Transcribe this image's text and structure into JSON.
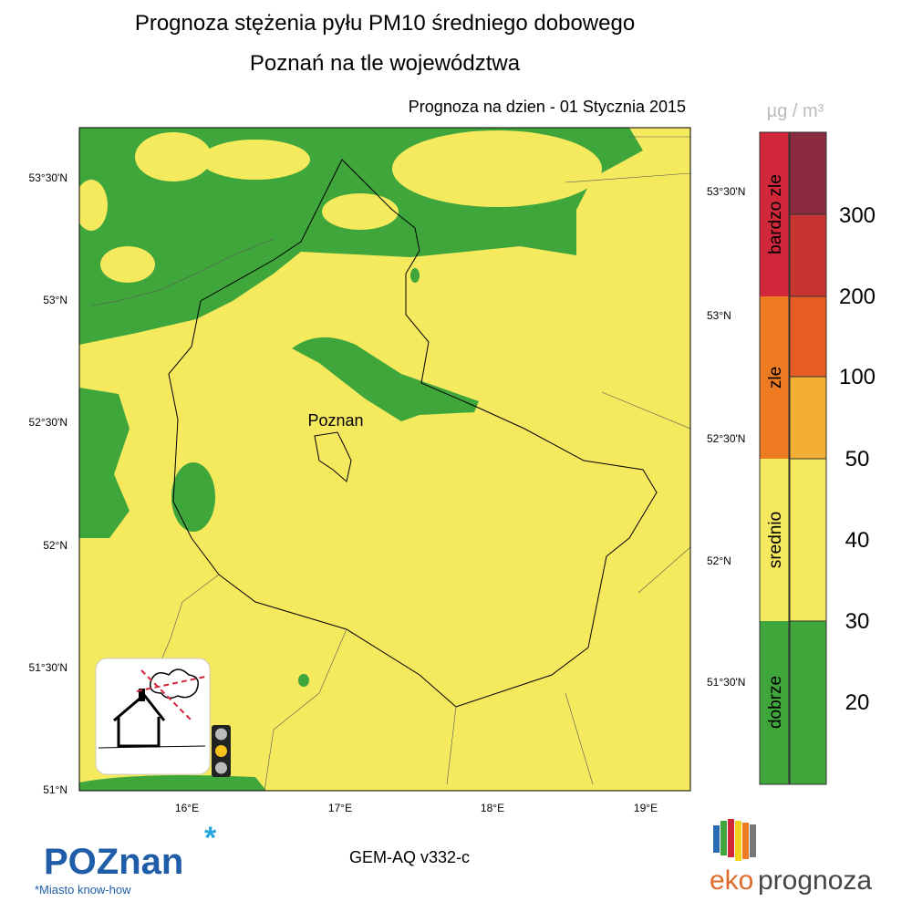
{
  "header": {
    "title": "Prognoza stężenia pyłu PM10 średniego dobowego",
    "subtitle": "Poznań na tle województwa",
    "date_label": "Prognoza na dzien -  01 Stycznia 2015"
  },
  "map": {
    "lat_labels_left": [
      "53°30'N",
      "53°N",
      "52°30'N",
      "52°N",
      "51°30'N",
      "51°N"
    ],
    "lat_labels_right": [
      "53°30'N",
      "53°N",
      "52°30'N",
      "52°N",
      "51°30'N"
    ],
    "lon_labels": [
      "16°E",
      "17°E",
      "18°E",
      "19°E"
    ],
    "city_label": "Poznan"
  },
  "legend": {
    "unit": "µg / m³",
    "categories": [
      "bardzo zle",
      "zle",
      "srednio",
      "dobrze"
    ],
    "thresholds": [
      300,
      200,
      100,
      50,
      40,
      30,
      20
    ]
  },
  "footer": {
    "model": "GEM-AQ v332-c",
    "poznan_logo": "POZnan",
    "poznan_tagline": "*Miasto know-how",
    "eko": "eko",
    "prognoza": "prognoza"
  }
}
